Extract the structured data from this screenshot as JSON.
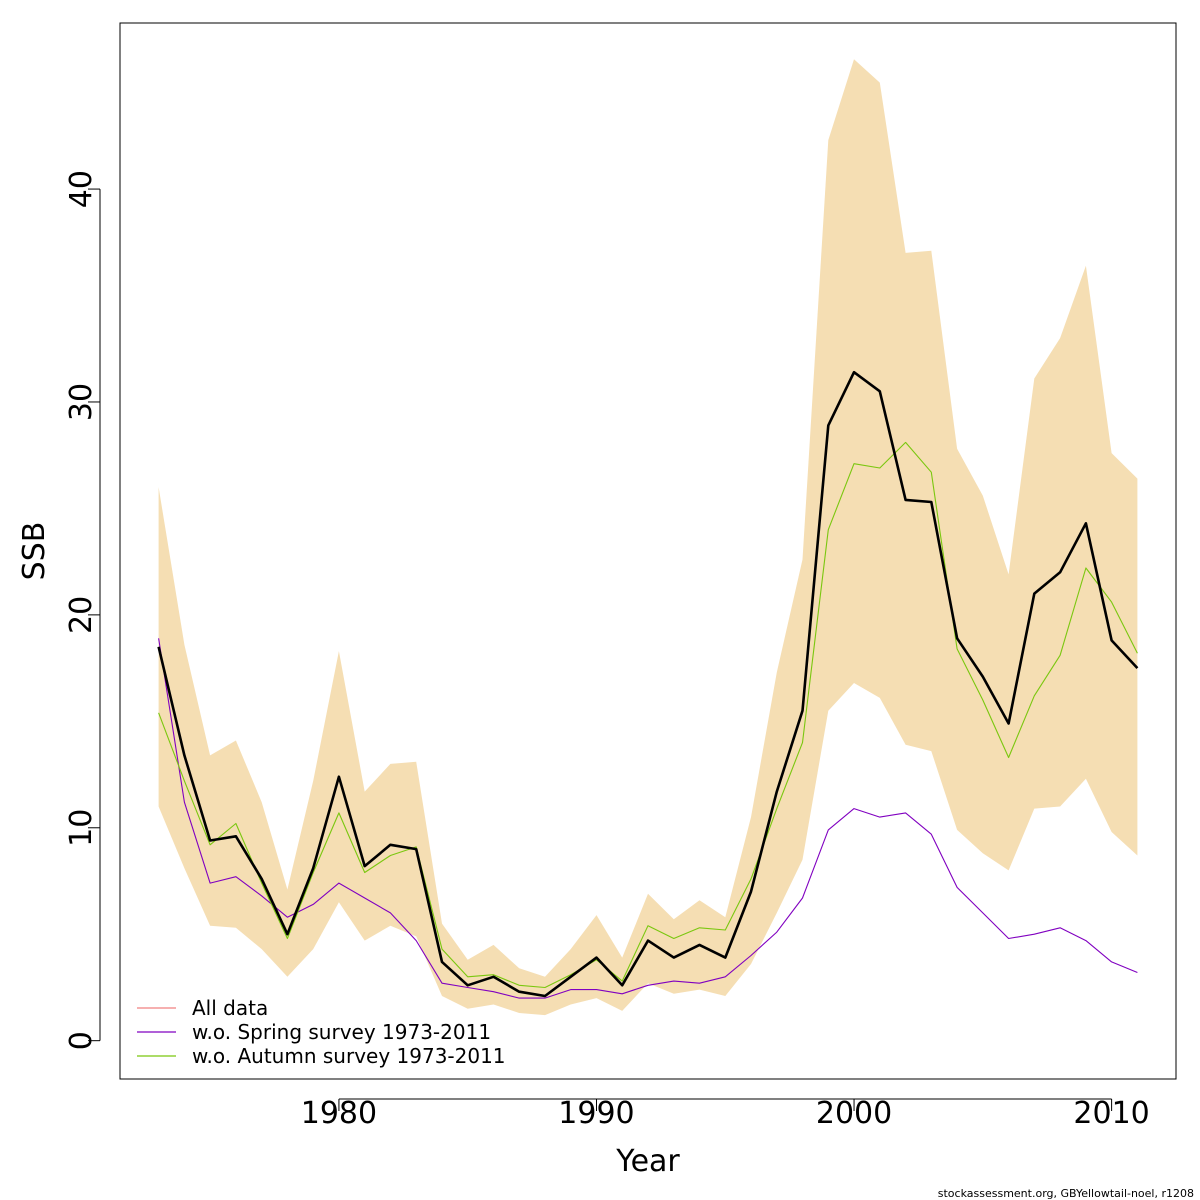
{
  "chart_data": {
    "type": "line",
    "xlabel": "Year",
    "ylabel": "SSB",
    "xlim": [
      1971.5,
      2012.5
    ],
    "ylim": [
      -1.8,
      47.8
    ],
    "x_ticks": [
      1980,
      1990,
      2000,
      2010
    ],
    "y_ticks": [
      0,
      10,
      20,
      30,
      40
    ],
    "x_tick_labels": [
      "1980",
      "1990",
      "2000",
      "2010"
    ],
    "y_tick_labels": [
      "0",
      "10",
      "20",
      "30",
      "40"
    ],
    "grid": false,
    "legend_position": "bottom-left",
    "x": [
      1973,
      1974,
      1975,
      1976,
      1977,
      1978,
      1979,
      1980,
      1981,
      1982,
      1983,
      1984,
      1985,
      1986,
      1987,
      1988,
      1989,
      1990,
      1991,
      1992,
      1993,
      1994,
      1995,
      1996,
      1997,
      1998,
      1999,
      2000,
      2001,
      2002,
      2003,
      2004,
      2005,
      2006,
      2007,
      2008,
      2009,
      2010,
      2011
    ],
    "band": {
      "color": "#F5DEB3",
      "upper": [
        26.0,
        18.6,
        13.4,
        14.1,
        11.2,
        7.1,
        12.2,
        18.3,
        11.7,
        13.0,
        13.1,
        5.5,
        3.8,
        4.5,
        3.4,
        3.0,
        4.3,
        5.9,
        3.9,
        6.9,
        5.7,
        6.6,
        5.8,
        10.5,
        17.3,
        22.6,
        42.3,
        46.1,
        45.0,
        37.0,
        37.1,
        27.8,
        25.6,
        21.9,
        31.1,
        33.0,
        36.4,
        27.6,
        26.4
      ],
      "lower": [
        11.0,
        8.1,
        5.4,
        5.3,
        4.3,
        3.0,
        4.3,
        6.5,
        4.7,
        5.4,
        4.9,
        2.1,
        1.5,
        1.7,
        1.3,
        1.2,
        1.7,
        2.0,
        1.4,
        2.7,
        2.2,
        2.4,
        2.1,
        3.6,
        6.0,
        8.5,
        15.5,
        16.8,
        16.1,
        13.9,
        13.6,
        9.9,
        8.8,
        8.0,
        10.9,
        11.0,
        12.3,
        9.8,
        8.7
      ]
    },
    "series": [
      {
        "name": "All data",
        "color": "#000000",
        "width": 2.6,
        "values": [
          18.5,
          13.4,
          9.4,
          9.6,
          7.6,
          5.0,
          8.1,
          12.4,
          8.2,
          9.2,
          9.0,
          3.7,
          2.6,
          3.0,
          2.3,
          2.1,
          3.0,
          3.9,
          2.6,
          4.7,
          3.9,
          4.5,
          3.9,
          7.0,
          11.7,
          15.5,
          28.9,
          31.4,
          30.5,
          25.4,
          25.3,
          18.9,
          17.1,
          14.9,
          21.0,
          22.0,
          24.3,
          18.8,
          17.5
        ]
      },
      {
        "name": "w.o. Spring survey 1973-2011",
        "color": "#8000C0",
        "width": 1.1,
        "values": [
          18.9,
          11.2,
          7.4,
          7.7,
          6.8,
          5.8,
          6.4,
          7.4,
          6.7,
          6.0,
          4.7,
          2.7,
          2.5,
          2.3,
          2.0,
          2.0,
          2.4,
          2.4,
          2.2,
          2.6,
          2.8,
          2.7,
          3.0,
          4.0,
          5.1,
          6.7,
          9.9,
          10.9,
          10.5,
          10.7,
          9.7,
          7.2,
          6.0,
          4.8,
          5.0,
          5.3,
          4.7,
          3.7,
          3.2
        ]
      },
      {
        "name": "w.o. Autumn survey 1973-2011",
        "color": "#7AC70F",
        "width": 1.1,
        "values": [
          15.4,
          12.2,
          9.2,
          10.2,
          7.4,
          4.8,
          7.9,
          10.7,
          7.9,
          8.7,
          9.1,
          4.3,
          3.0,
          3.1,
          2.6,
          2.5,
          3.1,
          3.8,
          2.8,
          5.4,
          4.8,
          5.3,
          5.2,
          7.6,
          10.9,
          14.0,
          24.0,
          27.1,
          26.9,
          28.1,
          26.7,
          18.4,
          16.0,
          13.3,
          16.2,
          18.1,
          22.2,
          20.6,
          18.2
        ]
      }
    ],
    "legend": [
      {
        "label": "All data",
        "color": "#F08080"
      },
      {
        "label": "w.o. Spring survey 1973-2011",
        "color": "#8000C0"
      },
      {
        "label": "w.o. Autumn survey 1973-2011",
        "color": "#7AC70F"
      }
    ]
  },
  "footer": "stockassessment.org, GBYellowtail-noel, r1208"
}
